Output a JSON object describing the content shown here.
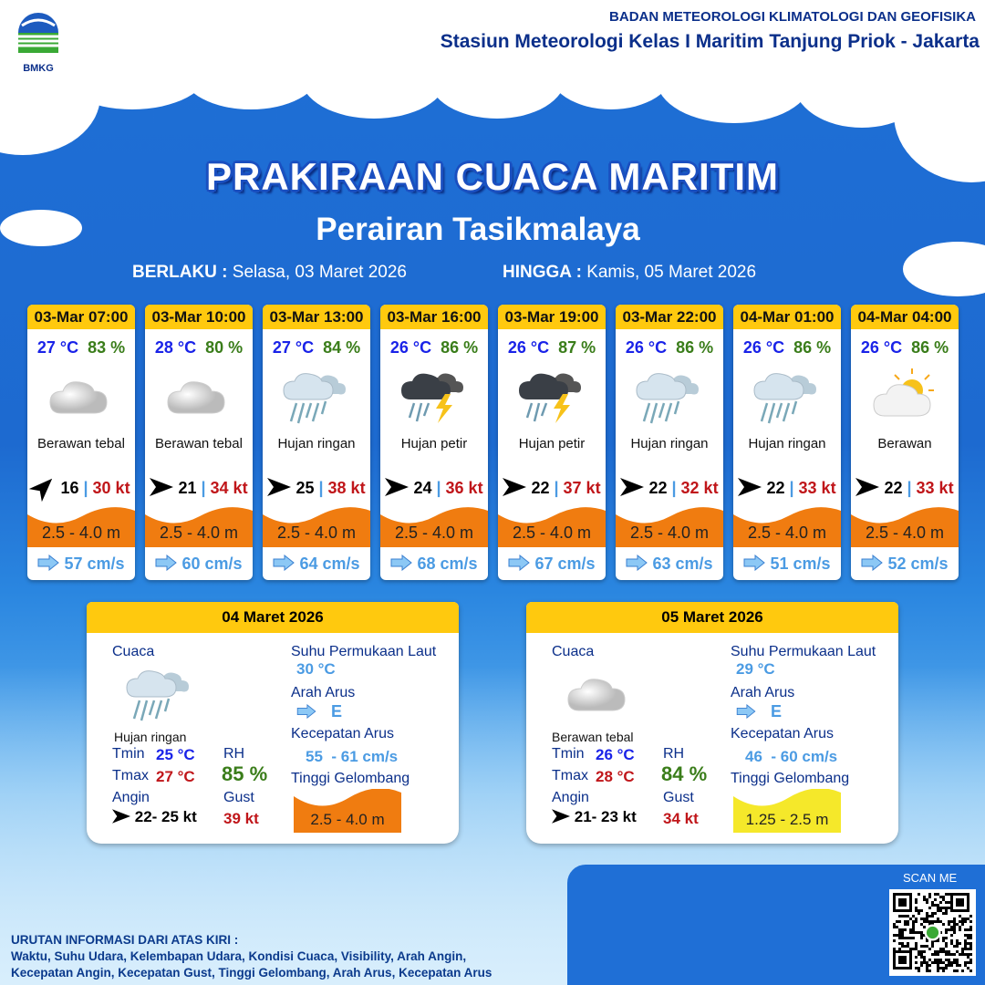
{
  "header": {
    "agency": "BADAN METEOROLOGI KLIMATOLOGI DAN GEOFISIKA",
    "station": "Stasiun Meteorologi Kelas I Maritim Tanjung Priok - Jakarta",
    "logo_text": "BMKG"
  },
  "title": "PRAKIRAAN CUACA MARITIM",
  "subtitle": "Perairan Tasikmalaya",
  "validity": {
    "from_label": "BERLAKU :",
    "from": "Selasa, 03 Maret 2026",
    "to_label": "HINGGA :",
    "to": "Kamis, 05 Maret 2026"
  },
  "colors": {
    "header_yellow": "#ffc90e",
    "wave_orange": "#f07c10",
    "wave_yellow": "#f5e82a",
    "temp": "#1a23e8",
    "rh": "#3a7d1a",
    "gust": "#c0161a",
    "current": "#4b9be3"
  },
  "cards": [
    {
      "time": "03-Mar 07:00",
      "temp": "27 °C",
      "rh": "83 %",
      "icon": "cloudy-icon",
      "cond": "Berawan tebal",
      "wind_dir_deg": 45,
      "wind": "16",
      "gust": "30 kt",
      "wave": "2.5 - 4.0 m",
      "current": "57 cm/s"
    },
    {
      "time": "03-Mar 10:00",
      "temp": "28 °C",
      "rh": "80 %",
      "icon": "cloudy-icon",
      "cond": "Berawan tebal",
      "wind_dir_deg": 90,
      "wind": "21",
      "gust": "34 kt",
      "wave": "2.5 - 4.0 m",
      "current": "60 cm/s"
    },
    {
      "time": "03-Mar 13:00",
      "temp": "27 °C",
      "rh": "84 %",
      "icon": "light-rain-icon",
      "cond": "Hujan ringan",
      "wind_dir_deg": 90,
      "wind": "25",
      "gust": "38 kt",
      "wave": "2.5 - 4.0 m",
      "current": "64 cm/s"
    },
    {
      "time": "03-Mar 16:00",
      "temp": "26 °C",
      "rh": "86 %",
      "icon": "thunderstorm-icon",
      "cond": "Hujan petir",
      "wind_dir_deg": 90,
      "wind": "24",
      "gust": "36 kt",
      "wave": "2.5 - 4.0 m",
      "current": "68 cm/s"
    },
    {
      "time": "03-Mar 19:00",
      "temp": "26 °C",
      "rh": "87 %",
      "icon": "thunderstorm-icon",
      "cond": "Hujan petir",
      "wind_dir_deg": 90,
      "wind": "22",
      "gust": "37 kt",
      "wave": "2.5 - 4.0 m",
      "current": "67 cm/s"
    },
    {
      "time": "03-Mar 22:00",
      "temp": "26 °C",
      "rh": "86 %",
      "icon": "light-rain-icon",
      "cond": "Hujan ringan",
      "wind_dir_deg": 90,
      "wind": "22",
      "gust": "32 kt",
      "wave": "2.5 - 4.0 m",
      "current": "63 cm/s"
    },
    {
      "time": "04-Mar 01:00",
      "temp": "26 °C",
      "rh": "86 %",
      "icon": "light-rain-icon",
      "cond": "Hujan ringan",
      "wind_dir_deg": 90,
      "wind": "22",
      "gust": "33 kt",
      "wave": "2.5 - 4.0 m",
      "current": "51 cm/s"
    },
    {
      "time": "04-Mar 04:00",
      "temp": "26 °C",
      "rh": "86 %",
      "icon": "partly-cloudy-icon",
      "cond": "Berawan",
      "wind_dir_deg": 90,
      "wind": "22",
      "gust": "33 kt",
      "wave": "2.5 - 4.0 m",
      "current": "52 cm/s"
    }
  ],
  "labels": {
    "weather": "Cuaca",
    "sst": "Suhu Permukaan Laut",
    "cur_dir": "Arah Arus",
    "cur_speed": "Kecepatan Arus",
    "wave": "Tinggi Gelombang",
    "tmin": "Tmin",
    "tmax": "Tmax",
    "rh": "RH",
    "wind": "Angin",
    "gust": "Gust"
  },
  "days": [
    {
      "date": "04 Maret 2026",
      "icon": "light-rain-icon",
      "cond": "Hujan ringan",
      "tmin": "25 °C",
      "tmax": "27 °C",
      "rh": "85 %",
      "wind": "22- 25 kt",
      "gust": "39 kt",
      "sst": "30 °C",
      "cur_dir": "E",
      "cur_speed": "55  - 61 cm/s",
      "wave": "2.5 - 4.0 m",
      "wave_color": "#f07c10"
    },
    {
      "date": "05 Maret 2026",
      "icon": "cloudy-icon",
      "cond": "Berawan tebal",
      "tmin": "26 °C",
      "tmax": "28 °C",
      "rh": "84 %",
      "wind": "21- 23 kt",
      "gust": "34 kt",
      "sst": "29 °C",
      "cur_dir": "E",
      "cur_speed": "46  - 60 cm/s",
      "wave": "1.25 - 2.5 m",
      "wave_color": "#f5e82a"
    }
  ],
  "footer": {
    "heading": "URUTAN INFORMASI DARI ATAS KIRI :",
    "line1": "Waktu, Suhu Udara, Kelembapan Udara, Kondisi Cuaca, Visibility, Arah Angin,",
    "line2": "Kecepatan Angin, Kecepatan Gust, Tinggi Gelombang, Arah Arus, Kecepatan Arus"
  },
  "qr": {
    "label": "SCAN ME"
  }
}
